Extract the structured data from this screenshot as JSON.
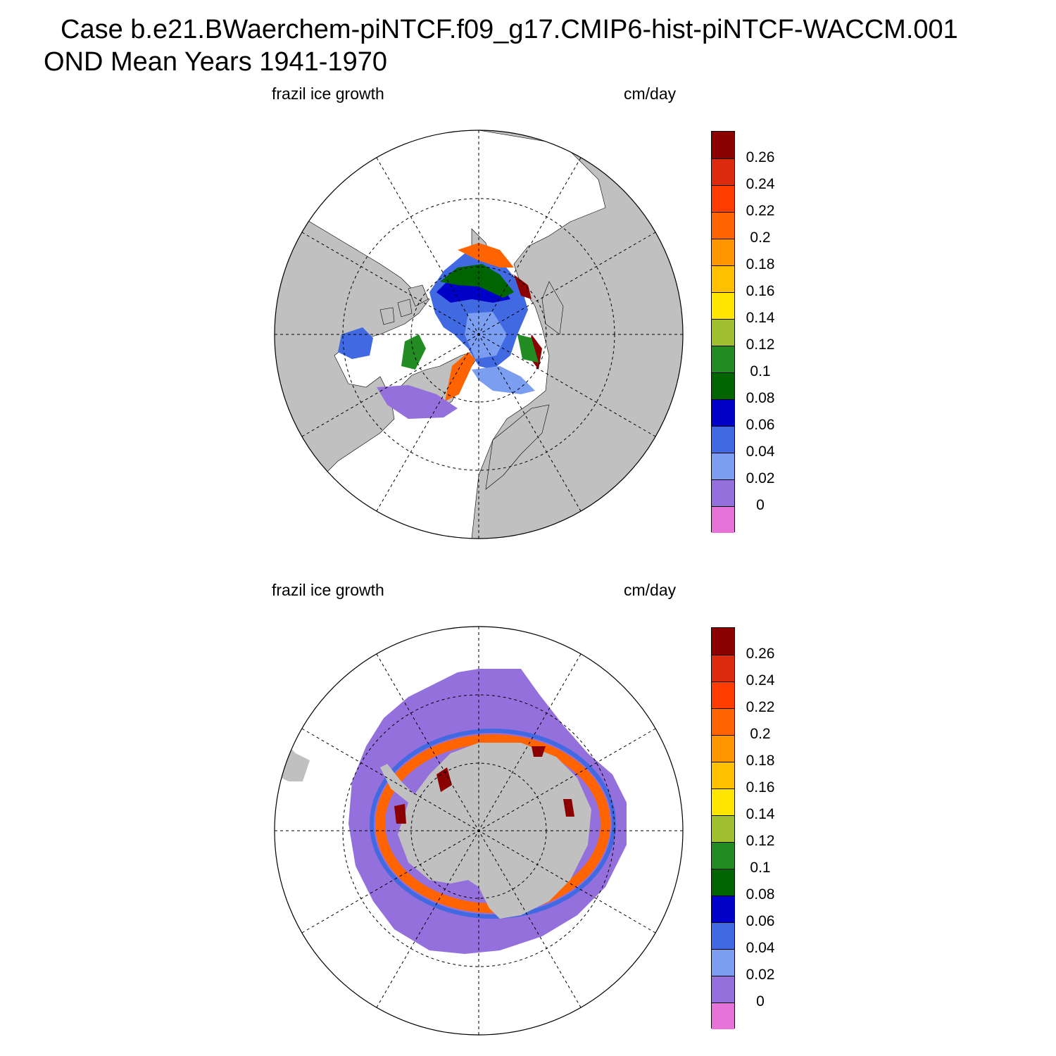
{
  "figure": {
    "title_line1": "Case b.e21.BWaerchem-piNTCF.f09_g17.CMIP6-hist-piNTCF-WACCM.001",
    "title_line2": "OND Mean   Years 1941-1970"
  },
  "panels": [
    {
      "id": "north",
      "left_label": "frazil ice growth",
      "right_label": "cm/day",
      "hemisphere": "Arctic (north polar stereographic)"
    },
    {
      "id": "south",
      "left_label": "frazil ice growth",
      "right_label": "cm/day",
      "hemisphere": "Antarctic (south polar stereographic)"
    }
  ],
  "colorbar": {
    "labels": [
      "0.26",
      "0.24",
      "0.22",
      "0.2",
      "0.18",
      "0.16",
      "0.14",
      "0.12",
      "0.1",
      "0.08",
      "0.06",
      "0.04",
      "0.02",
      "0"
    ],
    "colors_top_to_bottom": [
      "#8B0000",
      "#DC2A0F",
      "#FF3C00",
      "#FF6400",
      "#FF9600",
      "#FFC000",
      "#FFE600",
      "#A0C030",
      "#228B22",
      "#006400",
      "#0000C8",
      "#4169E1",
      "#7B9EF0",
      "#9370DB",
      "#E673D8"
    ]
  },
  "map_colors": {
    "land": "#C0C0C0",
    "ice_free_ocean": "#FFFFFF",
    "grid_lines": "#000000"
  },
  "chart_data": [
    {
      "type": "heatmap",
      "region": "Arctic",
      "variable": "frazil ice growth",
      "units": "cm/day",
      "levels": [
        0,
        0.02,
        0.04,
        0.06,
        0.08,
        0.1,
        0.12,
        0.14,
        0.16,
        0.18,
        0.2,
        0.22,
        0.24,
        0.26
      ],
      "description_values": {
        "central_arctic_ocean": "0.04-0.08",
        "siberian_shelf_edges": ">0.26",
        "hudson_bay": "0.04-0.06",
        "north_atlantic_margin": "0-0.02"
      }
    },
    {
      "type": "heatmap",
      "region": "Antarctic",
      "variable": "frazil ice growth",
      "units": "cm/day",
      "levels": [
        0,
        0.02,
        0.04,
        0.06,
        0.08,
        0.1,
        0.12,
        0.14,
        0.16,
        0.18,
        0.2,
        0.22,
        0.24,
        0.26
      ],
      "description_values": {
        "outer_sea_ice_zone": "0-0.02",
        "coastal_polynyas": ">0.26"
      }
    }
  ]
}
